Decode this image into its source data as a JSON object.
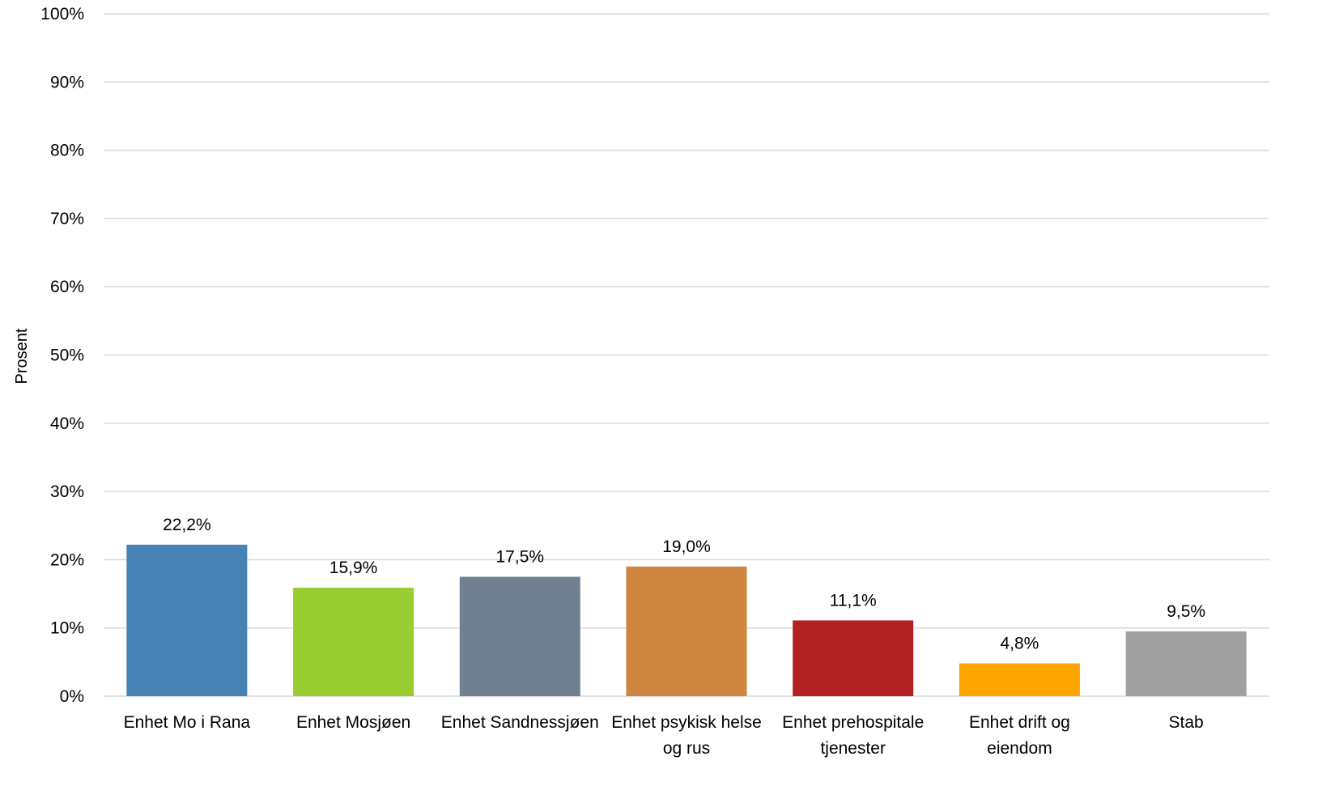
{
  "chart_data": {
    "type": "bar",
    "title": "",
    "xlabel": "",
    "ylabel": "Prosent",
    "ylim": [
      0,
      100
    ],
    "yticks": [
      0,
      10,
      20,
      30,
      40,
      50,
      60,
      70,
      80,
      90,
      100
    ],
    "ytick_labels": [
      "0%",
      "10%",
      "20%",
      "30%",
      "40%",
      "50%",
      "60%",
      "70%",
      "80%",
      "90%",
      "100%"
    ],
    "grid": true,
    "legend": "none",
    "categories": [
      [
        "Enhet Mo i Rana"
      ],
      [
        "Enhet Mosjøen"
      ],
      [
        "Enhet Sandnessjøen"
      ],
      [
        "Enhet psykisk helse",
        "og rus"
      ],
      [
        "Enhet prehospitale",
        "tjenester"
      ],
      [
        "Enhet drift og",
        "eiendom"
      ],
      [
        "Stab"
      ]
    ],
    "values": [
      22.2,
      15.9,
      17.5,
      19.0,
      11.1,
      4.8,
      9.5
    ],
    "data_labels": [
      "22,2%",
      "15,9%",
      "17,5%",
      "19,0%",
      "11,1%",
      "4,8%",
      "9,5%"
    ],
    "colors": [
      "#4682b4",
      "#9acd32",
      "#708090",
      "#cd853f",
      "#b22222",
      "#ffa500",
      "#a0a0a0"
    ]
  }
}
